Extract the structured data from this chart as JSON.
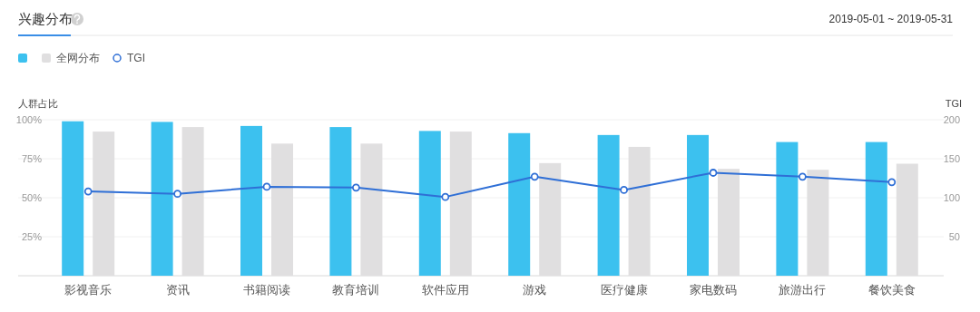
{
  "chart_data": {
    "type": "bar",
    "title": "兴趣分布",
    "annotations": [
      "2019-05-01 ~ 2019-05-31"
    ],
    "ylabel": "人群占比",
    "y2label": "TGI",
    "categories": [
      "影视音乐",
      "资讯",
      "书籍阅读",
      "教育培训",
      "软件应用",
      "游戏",
      "医疗健康",
      "家电数码",
      "旅游出行",
      "餐饮美食"
    ],
    "series": [
      {
        "color": "#3cc1ef",
        "values": [
          99,
          98.6,
          96,
          95.3,
          92.8,
          91.4,
          90.2,
          90.2,
          85.7,
          85.7
        ]
      },
      {
        "name": "全网分布",
        "color": "#e0dfe0",
        "values": [
          92.4,
          95.3,
          84.7,
          84.7,
          92.4,
          72.2,
          82.6,
          68.5,
          67.9,
          71.8
        ]
      },
      {
        "name": "TGI",
        "type": "line",
        "axis": "y2",
        "color": "#2f6fd6",
        "marker": "circle",
        "values": [
          108,
          105,
          114,
          113,
          101,
          127,
          110,
          132,
          127,
          120
        ]
      }
    ],
    "ylim": [
      0,
      100
    ],
    "yticks": [
      {
        "value": 25,
        "label": "25%"
      },
      {
        "value": 50,
        "label": "50%"
      },
      {
        "value": 75,
        "label": "75%"
      },
      {
        "value": 100,
        "label": "100%"
      }
    ],
    "y2lim": [
      0,
      200
    ],
    "y2ticks": [
      50,
      100,
      150,
      200
    ],
    "grid": "y",
    "legend": "top left"
  }
}
